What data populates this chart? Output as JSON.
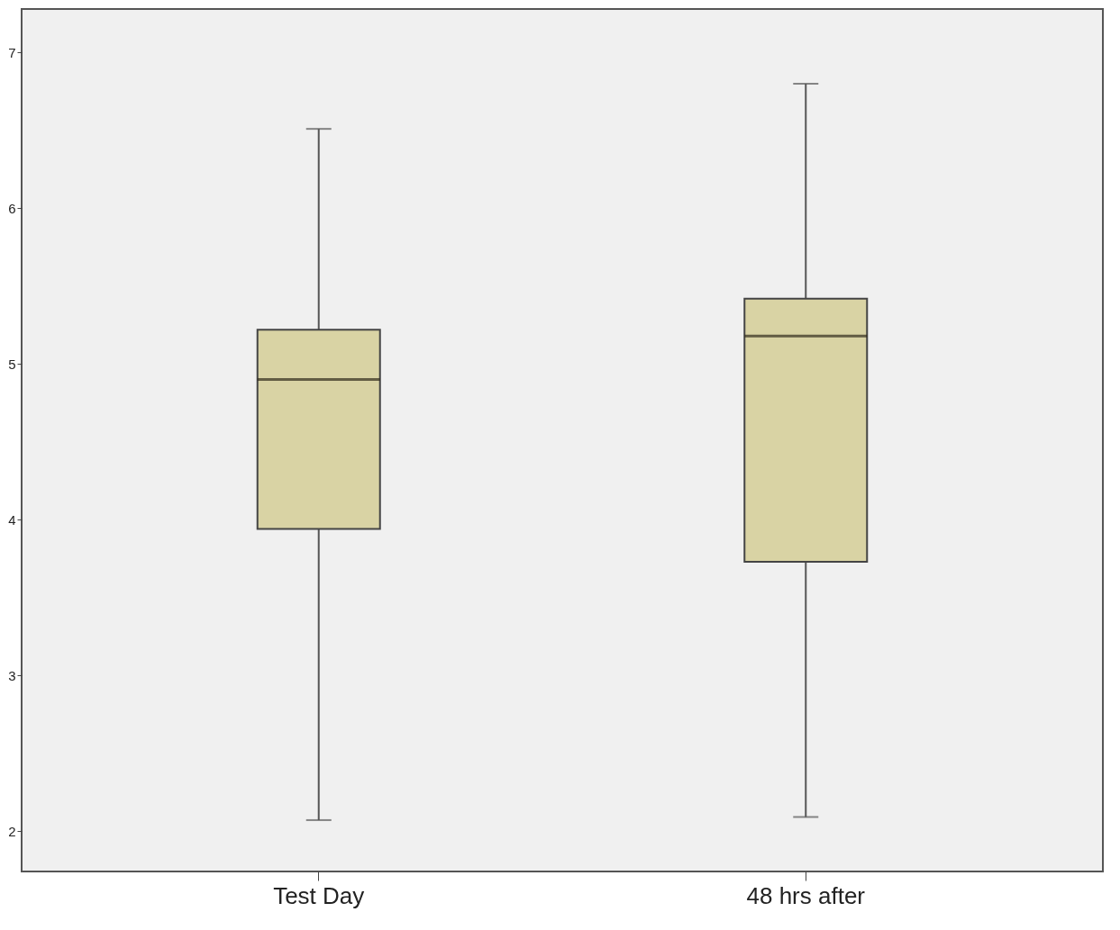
{
  "chart_data": {
    "type": "box",
    "categories": [
      "Test Day",
      "48 hrs after"
    ],
    "boxes": [
      {
        "low": 2.07,
        "q1": 3.94,
        "median": 4.9,
        "q3": 5.22,
        "high": 6.51
      },
      {
        "low": 2.09,
        "q1": 3.73,
        "median": 5.18,
        "q3": 5.42,
        "high": 6.8
      }
    ],
    "color": "#d9d3a4",
    "ylim": [
      1.74,
      7.28
    ],
    "yticks": [
      2,
      3,
      4,
      5,
      6,
      7
    ],
    "grid": false
  }
}
